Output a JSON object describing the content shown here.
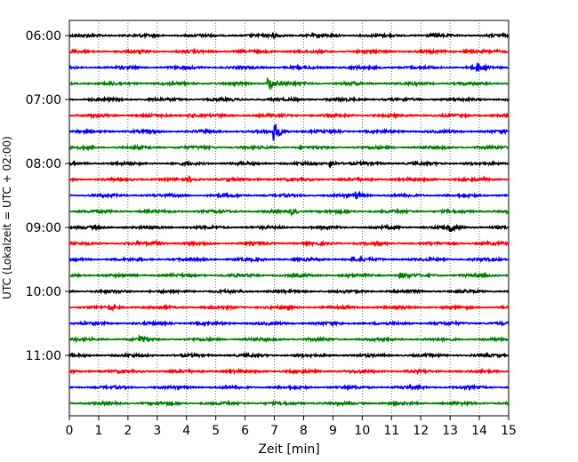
{
  "chart_data": {
    "type": "line",
    "title": "",
    "xlabel": "Zeit  [min]",
    "ylabel": "UTC (Lokalzeit = UTC + 02:00)",
    "xlim": [
      0,
      15
    ],
    "xticks": [
      "0",
      "1",
      "2",
      "3",
      "4",
      "5",
      "6",
      "7",
      "8",
      "9",
      "10",
      "11",
      "12",
      "13",
      "14",
      "15"
    ],
    "ytick_labels": [
      "06:00",
      "07:00",
      "08:00",
      "09:00",
      "10:00",
      "11:00"
    ],
    "grid": "vertical dotted lines at each minute",
    "trace_interval_minutes": 15,
    "trace_color_cycle": [
      "#000000",
      "#ff0000",
      "#0000ff",
      "#008000"
    ],
    "traces": [
      {
        "start": "06:00",
        "color": "#000000",
        "events": [
          {
            "t": 6.9,
            "amp": 0.35
          }
        ]
      },
      {
        "start": "06:15",
        "color": "#ff0000",
        "events": [
          {
            "t": 13.5,
            "amp": 0.2
          }
        ]
      },
      {
        "start": "06:30",
        "color": "#0000ff",
        "events": [
          {
            "t": 13.95,
            "amp": 0.45
          }
        ]
      },
      {
        "start": "06:45",
        "color": "#008000",
        "events": [
          {
            "t": 6.8,
            "amp": 0.9
          }
        ]
      },
      {
        "start": "07:00",
        "color": "#000000",
        "events": []
      },
      {
        "start": "07:15",
        "color": "#ff0000",
        "events": [
          {
            "t": 4.1,
            "amp": 0.2
          }
        ]
      },
      {
        "start": "07:30",
        "color": "#0000ff",
        "events": [
          {
            "t": 7.0,
            "amp": 1.1
          }
        ]
      },
      {
        "start": "07:45",
        "color": "#008000",
        "events": []
      },
      {
        "start": "08:00",
        "color": "#000000",
        "events": [
          {
            "t": 8.9,
            "amp": 0.45
          }
        ]
      },
      {
        "start": "08:15",
        "color": "#ff0000",
        "events": [
          {
            "t": 4.1,
            "amp": 0.25
          }
        ]
      },
      {
        "start": "08:30",
        "color": "#0000ff",
        "events": [
          {
            "t": 9.8,
            "amp": 0.4
          }
        ]
      },
      {
        "start": "08:45",
        "color": "#008000",
        "events": [
          {
            "t": 7.6,
            "amp": 0.3
          }
        ]
      },
      {
        "start": "09:00",
        "color": "#000000",
        "events": [
          {
            "t": 13.0,
            "amp": 0.45
          }
        ]
      },
      {
        "start": "09:15",
        "color": "#ff0000",
        "events": [
          {
            "t": 2.9,
            "amp": 0.3
          }
        ]
      },
      {
        "start": "09:30",
        "color": "#0000ff",
        "events": [
          {
            "t": 9.7,
            "amp": 0.25
          }
        ]
      },
      {
        "start": "09:45",
        "color": "#008000",
        "events": [
          {
            "t": 11.3,
            "amp": 0.3
          }
        ]
      },
      {
        "start": "10:00",
        "color": "#000000",
        "events": []
      },
      {
        "start": "10:15",
        "color": "#ff0000",
        "events": [
          {
            "t": 1.4,
            "amp": 0.25
          }
        ]
      },
      {
        "start": "10:30",
        "color": "#0000ff",
        "events": []
      },
      {
        "start": "10:45",
        "color": "#008000",
        "events": [
          {
            "t": 2.4,
            "amp": 0.4
          }
        ]
      },
      {
        "start": "11:00",
        "color": "#000000",
        "events": []
      },
      {
        "start": "11:15",
        "color": "#ff0000",
        "events": []
      },
      {
        "start": "11:30",
        "color": "#0000ff",
        "events": []
      },
      {
        "start": "11:45",
        "color": "#008000",
        "events": []
      }
    ]
  }
}
